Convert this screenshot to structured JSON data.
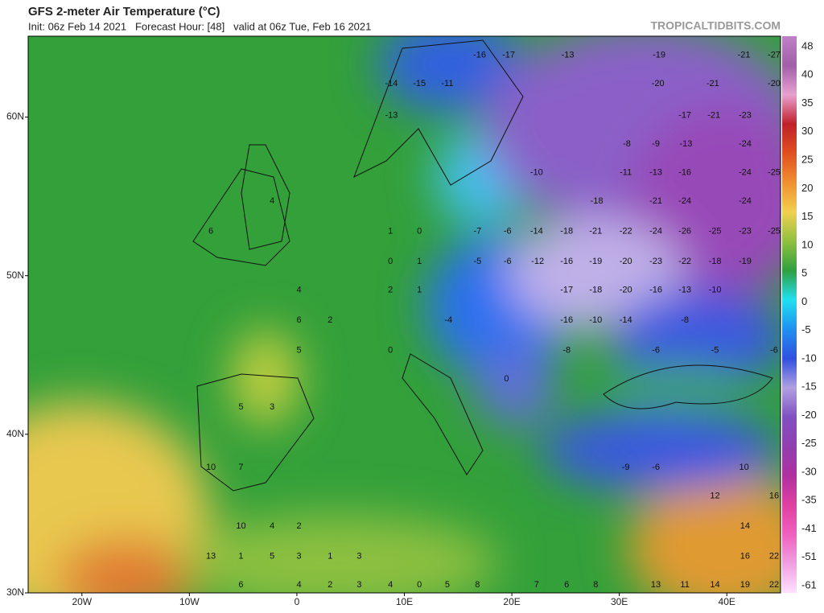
{
  "header": {
    "title": "GFS 2-meter Air Temperature (°C)",
    "subtitle": "Init: 06z Feb 14 2021   Forecast Hour: [48]   valid at 06z Tue, Feb 16 2021",
    "brand": "TROPICALTIDBITS.COM"
  },
  "chart_data": {
    "type": "map",
    "xlim": [
      -25,
      45
    ],
    "ylim": [
      30,
      65.1
    ],
    "xticks": [
      {
        "value": -20,
        "label": "20W"
      },
      {
        "value": -10,
        "label": "10W"
      },
      0,
      {
        "value": 10,
        "label": "10E"
      },
      {
        "value": 20,
        "label": "20E"
      },
      {
        "value": 30,
        "label": "30E"
      },
      {
        "value": 40,
        "label": "40E"
      }
    ],
    "yticks": [
      {
        "value": 60,
        "label": "60N"
      },
      {
        "value": 50,
        "label": "50N"
      },
      {
        "value": 40,
        "label": "40N"
      },
      {
        "value": 30,
        "label": "30N"
      }
    ],
    "colorbar": {
      "labels": [
        48,
        40,
        35,
        30,
        25,
        20,
        15,
        10,
        5,
        0,
        -5,
        -10,
        -15,
        -20,
        -25,
        -30,
        -35,
        -41,
        -51,
        -61
      ],
      "colors": [
        "#c080c8",
        "#a060a8",
        "#e8a0d0",
        "#c0202a",
        "#e05020",
        "#f09030",
        "#f0d050",
        "#90c040",
        "#30a040",
        "#20e0f0",
        "#2090f0",
        "#3050e0",
        "#b0a0e0",
        "#8050c0",
        "#9040b0",
        "#b030a0",
        "#e040a0",
        "#f060c0",
        "#f0a0e0",
        "#ffe0ff"
      ]
    },
    "points": [
      {
        "lon": 17.0,
        "lat": 63.9,
        "value": -16
      },
      {
        "lon": 19.7,
        "lat": 63.9,
        "value": -17
      },
      {
        "lon": 25.2,
        "lat": 63.9,
        "value": -13
      },
      {
        "lon": 33.7,
        "lat": 63.9,
        "value": -19
      },
      {
        "lon": 41.6,
        "lat": 63.9,
        "value": -21
      },
      {
        "lon": 44.4,
        "lat": 63.9,
        "value": -27
      },
      {
        "lon": 8.8,
        "lat": 62.1,
        "value": -14
      },
      {
        "lon": 11.4,
        "lat": 62.1,
        "value": -15
      },
      {
        "lon": 14.0,
        "lat": 62.1,
        "value": -11
      },
      {
        "lon": 33.6,
        "lat": 62.1,
        "value": -20
      },
      {
        "lon": 38.7,
        "lat": 62.1,
        "value": -21
      },
      {
        "lon": 44.4,
        "lat": 62.1,
        "value": -20
      },
      {
        "lon": 8.8,
        "lat": 60.1,
        "value": -13
      },
      {
        "lon": 36.1,
        "lat": 60.1,
        "value": -17
      },
      {
        "lon": 38.8,
        "lat": 60.1,
        "value": -21
      },
      {
        "lon": 41.7,
        "lat": 60.1,
        "value": -23
      },
      {
        "lon": 30.7,
        "lat": 58.3,
        "value": -8
      },
      {
        "lon": 33.4,
        "lat": 58.3,
        "value": -9
      },
      {
        "lon": 36.2,
        "lat": 58.3,
        "value": -13
      },
      {
        "lon": 41.7,
        "lat": 58.3,
        "value": -24
      },
      {
        "lon": 22.3,
        "lat": 56.5,
        "value": -10
      },
      {
        "lon": 30.6,
        "lat": 56.5,
        "value": -11
      },
      {
        "lon": 33.4,
        "lat": 56.5,
        "value": -13
      },
      {
        "lon": 36.1,
        "lat": 56.5,
        "value": -16
      },
      {
        "lon": 41.7,
        "lat": 56.5,
        "value": -24
      },
      {
        "lon": 44.4,
        "lat": 56.5,
        "value": -25
      },
      {
        "lon": -2.3,
        "lat": 54.7,
        "value": 4
      },
      {
        "lon": 27.9,
        "lat": 54.7,
        "value": -18
      },
      {
        "lon": 33.4,
        "lat": 54.7,
        "value": -21
      },
      {
        "lon": 36.1,
        "lat": 54.7,
        "value": -24
      },
      {
        "lon": 41.7,
        "lat": 54.7,
        "value": -24
      },
      {
        "lon": -8.0,
        "lat": 52.8,
        "value": 6
      },
      {
        "lon": 8.7,
        "lat": 52.8,
        "value": 1
      },
      {
        "lon": 11.4,
        "lat": 52.8,
        "value": 0
      },
      {
        "lon": 16.8,
        "lat": 52.8,
        "value": -7
      },
      {
        "lon": 19.6,
        "lat": 52.8,
        "value": -6
      },
      {
        "lon": 22.3,
        "lat": 52.8,
        "value": -14
      },
      {
        "lon": 25.1,
        "lat": 52.8,
        "value": -18
      },
      {
        "lon": 27.8,
        "lat": 52.8,
        "value": -21
      },
      {
        "lon": 30.6,
        "lat": 52.8,
        "value": -22
      },
      {
        "lon": 33.4,
        "lat": 52.8,
        "value": -24
      },
      {
        "lon": 36.1,
        "lat": 52.8,
        "value": -26
      },
      {
        "lon": 38.9,
        "lat": 52.8,
        "value": -25
      },
      {
        "lon": 41.7,
        "lat": 52.8,
        "value": -23
      },
      {
        "lon": 44.4,
        "lat": 52.8,
        "value": -25
      },
      {
        "lon": 8.7,
        "lat": 50.9,
        "value": 0
      },
      {
        "lon": 11.4,
        "lat": 50.9,
        "value": 1
      },
      {
        "lon": 16.8,
        "lat": 50.9,
        "value": -5
      },
      {
        "lon": 19.6,
        "lat": 50.9,
        "value": -6
      },
      {
        "lon": 22.4,
        "lat": 50.9,
        "value": -12
      },
      {
        "lon": 25.1,
        "lat": 50.9,
        "value": -16
      },
      {
        "lon": 27.8,
        "lat": 50.9,
        "value": -19
      },
      {
        "lon": 30.6,
        "lat": 50.9,
        "value": -20
      },
      {
        "lon": 33.4,
        "lat": 50.9,
        "value": -23
      },
      {
        "lon": 36.1,
        "lat": 50.9,
        "value": -22
      },
      {
        "lon": 38.9,
        "lat": 50.9,
        "value": -18
      },
      {
        "lon": 41.7,
        "lat": 50.9,
        "value": -19
      },
      {
        "lon": 0.2,
        "lat": 49.1,
        "value": 4
      },
      {
        "lon": 8.7,
        "lat": 49.1,
        "value": 2
      },
      {
        "lon": 11.4,
        "lat": 49.1,
        "value": 1
      },
      {
        "lon": 25.1,
        "lat": 49.1,
        "value": -17
      },
      {
        "lon": 27.8,
        "lat": 49.1,
        "value": -18
      },
      {
        "lon": 30.6,
        "lat": 49.1,
        "value": -20
      },
      {
        "lon": 33.4,
        "lat": 49.1,
        "value": -16
      },
      {
        "lon": 36.1,
        "lat": 49.1,
        "value": -13
      },
      {
        "lon": 38.9,
        "lat": 49.1,
        "value": -10
      },
      {
        "lon": 0.2,
        "lat": 47.2,
        "value": 6
      },
      {
        "lon": 3.1,
        "lat": 47.2,
        "value": 2
      },
      {
        "lon": 14.1,
        "lat": 47.2,
        "value": -4
      },
      {
        "lon": 25.1,
        "lat": 47.2,
        "value": -16
      },
      {
        "lon": 27.8,
        "lat": 47.2,
        "value": -10
      },
      {
        "lon": 30.6,
        "lat": 47.2,
        "value": -14
      },
      {
        "lon": 36.1,
        "lat": 47.2,
        "value": -8
      },
      {
        "lon": 0.2,
        "lat": 45.3,
        "value": 5
      },
      {
        "lon": 8.7,
        "lat": 45.3,
        "value": 0
      },
      {
        "lon": 25.1,
        "lat": 45.3,
        "value": -8
      },
      {
        "lon": 33.4,
        "lat": 45.3,
        "value": -6
      },
      {
        "lon": 38.9,
        "lat": 45.3,
        "value": -5
      },
      {
        "lon": 44.4,
        "lat": 45.3,
        "value": -6
      },
      {
        "lon": 19.5,
        "lat": 43.5,
        "value": 0
      },
      {
        "lon": -5.2,
        "lat": 41.7,
        "value": 5
      },
      {
        "lon": -2.3,
        "lat": 41.7,
        "value": 3
      },
      {
        "lon": 30.6,
        "lat": 37.9,
        "value": -9
      },
      {
        "lon": 33.4,
        "lat": 37.9,
        "value": -6
      },
      {
        "lon": -8.0,
        "lat": 37.9,
        "value": 10
      },
      {
        "lon": -5.2,
        "lat": 37.9,
        "value": 7
      },
      {
        "lon": 41.6,
        "lat": 37.9,
        "value": 10
      },
      {
        "lon": 38.9,
        "lat": 36.1,
        "value": 12
      },
      {
        "lon": 44.4,
        "lat": 36.1,
        "value": 16
      },
      {
        "lon": -5.2,
        "lat": 34.2,
        "value": 10
      },
      {
        "lon": -2.3,
        "lat": 34.2,
        "value": 4
      },
      {
        "lon": 0.2,
        "lat": 34.2,
        "value": 2
      },
      {
        "lon": 41.7,
        "lat": 34.2,
        "value": 14
      },
      {
        "lon": -8.0,
        "lat": 32.3,
        "value": 13
      },
      {
        "lon": -5.2,
        "lat": 32.3,
        "value": 1
      },
      {
        "lon": -2.3,
        "lat": 32.3,
        "value": 5
      },
      {
        "lon": 0.2,
        "lat": 32.3,
        "value": 3
      },
      {
        "lon": 3.1,
        "lat": 32.3,
        "value": 1
      },
      {
        "lon": 5.8,
        "lat": 32.3,
        "value": 3
      },
      {
        "lon": 41.7,
        "lat": 32.3,
        "value": 16
      },
      {
        "lon": 44.4,
        "lat": 32.3,
        "value": 22
      },
      {
        "lon": -5.2,
        "lat": 30.5,
        "value": 6
      },
      {
        "lon": 0.2,
        "lat": 30.5,
        "value": 4
      },
      {
        "lon": 3.1,
        "lat": 30.5,
        "value": 2
      },
      {
        "lon": 5.8,
        "lat": 30.5,
        "value": 3
      },
      {
        "lon": 8.7,
        "lat": 30.5,
        "value": 4
      },
      {
        "lon": 11.4,
        "lat": 30.5,
        "value": 0
      },
      {
        "lon": 14.0,
        "lat": 30.5,
        "value": 5
      },
      {
        "lon": 16.8,
        "lat": 30.5,
        "value": 8
      },
      {
        "lon": 22.3,
        "lat": 30.5,
        "value": 7
      },
      {
        "lon": 25.1,
        "lat": 30.5,
        "value": 6
      },
      {
        "lon": 27.8,
        "lat": 30.5,
        "value": 8
      },
      {
        "lon": 33.4,
        "lat": 30.5,
        "value": 13
      },
      {
        "lon": 36.1,
        "lat": 30.5,
        "value": 11
      },
      {
        "lon": 38.9,
        "lat": 30.5,
        "value": 14
      },
      {
        "lon": 41.7,
        "lat": 30.5,
        "value": 19
      },
      {
        "lon": 44.4,
        "lat": 30.5,
        "value": 22
      }
    ]
  }
}
